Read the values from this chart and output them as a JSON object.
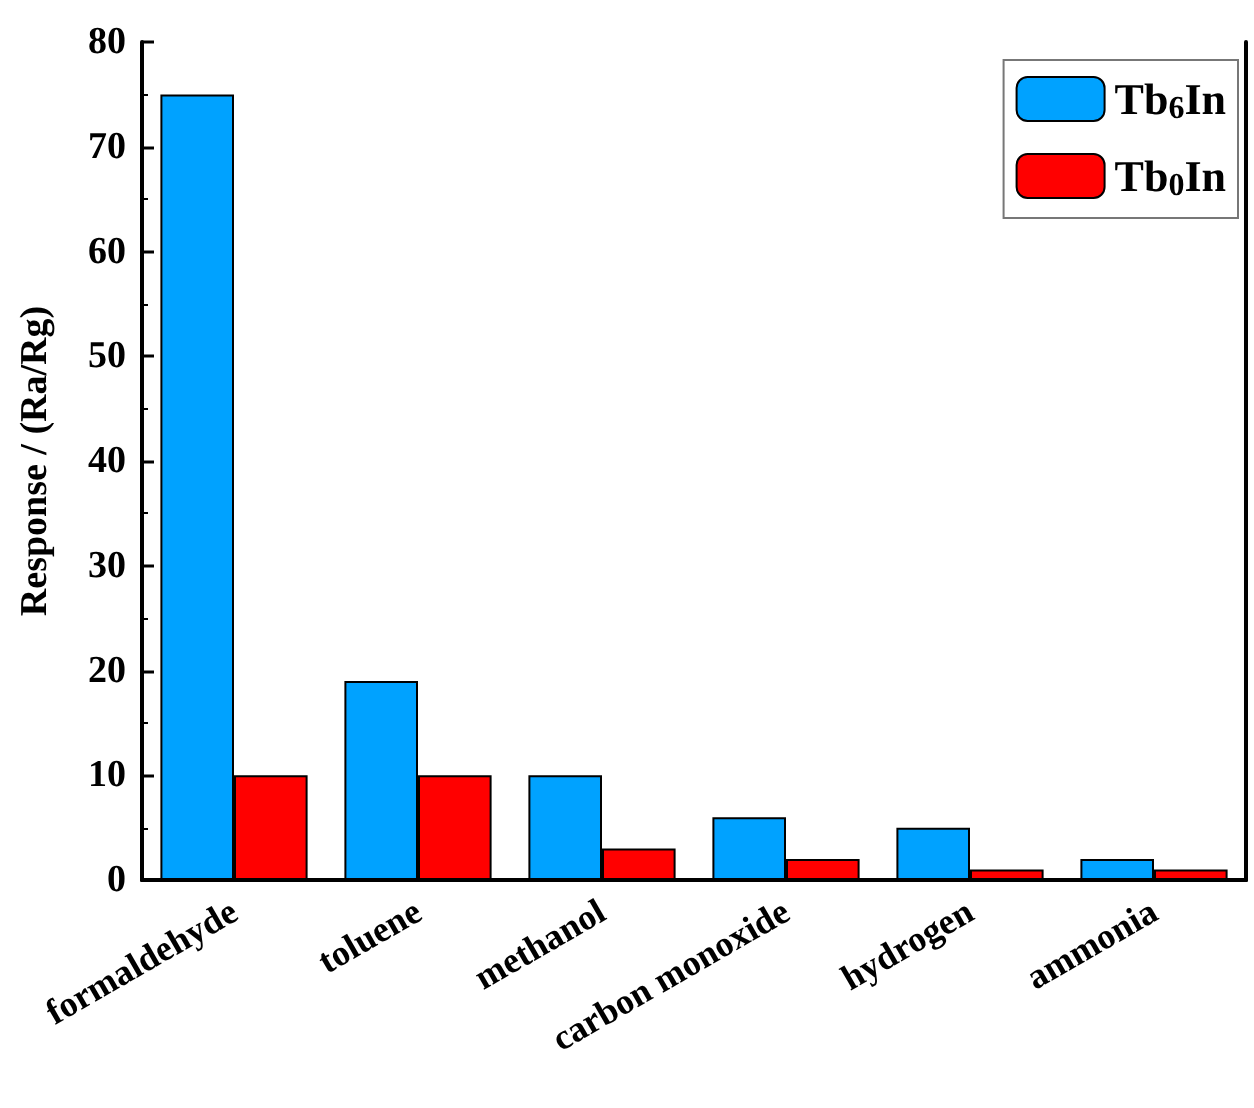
{
  "chart_data": {
    "type": "bar",
    "ylabel": "Response / (Ra/Rg)",
    "categories": [
      "formaldehyde",
      "toluene",
      "methanol",
      "carbon monoxide",
      "hydrogen",
      "ammonia"
    ],
    "series": [
      {
        "name": "Tb$_{6}$In",
        "color": "#00a2ff",
        "values": [
          75,
          19,
          10,
          6,
          5,
          2
        ]
      },
      {
        "name": "Tb$_{0}$In",
        "color": "#ff0000",
        "values": [
          10,
          10,
          3,
          2,
          1,
          1
        ]
      }
    ],
    "ylim": [
      0,
      80
    ],
    "yticks": [
      0,
      10,
      20,
      30,
      40,
      50,
      60,
      70,
      80
    ],
    "grid": false,
    "legend": "top right"
  }
}
